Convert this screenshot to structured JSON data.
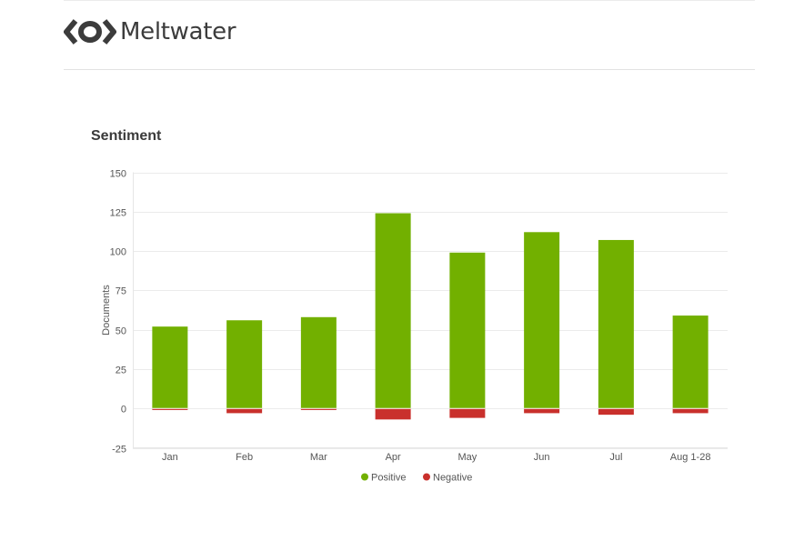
{
  "brand": {
    "name": "Meltwater",
    "logo_icon": "meltwater-eye-logo"
  },
  "chart_data": {
    "type": "bar",
    "stacked": true,
    "title": "Sentiment",
    "xlabel": "",
    "ylabel": "Documents",
    "ylim": [
      -25,
      150
    ],
    "yticks": [
      -25,
      0,
      25,
      50,
      75,
      100,
      125,
      150
    ],
    "grid": true,
    "legend_position": "bottom-center",
    "categories": [
      "Jan",
      "Feb",
      "Mar",
      "Apr",
      "May",
      "Jun",
      "Jul",
      "Aug 1-28"
    ],
    "series": [
      {
        "name": "Positive",
        "color": "#72b000",
        "values": [
          52,
          56,
          58,
          124,
          99,
          112,
          107,
          59
        ]
      },
      {
        "name": "Negative",
        "color": "#c9302c",
        "values": [
          -1,
          -3,
          -1,
          -7,
          -6,
          -3,
          -4,
          -3
        ]
      }
    ]
  }
}
